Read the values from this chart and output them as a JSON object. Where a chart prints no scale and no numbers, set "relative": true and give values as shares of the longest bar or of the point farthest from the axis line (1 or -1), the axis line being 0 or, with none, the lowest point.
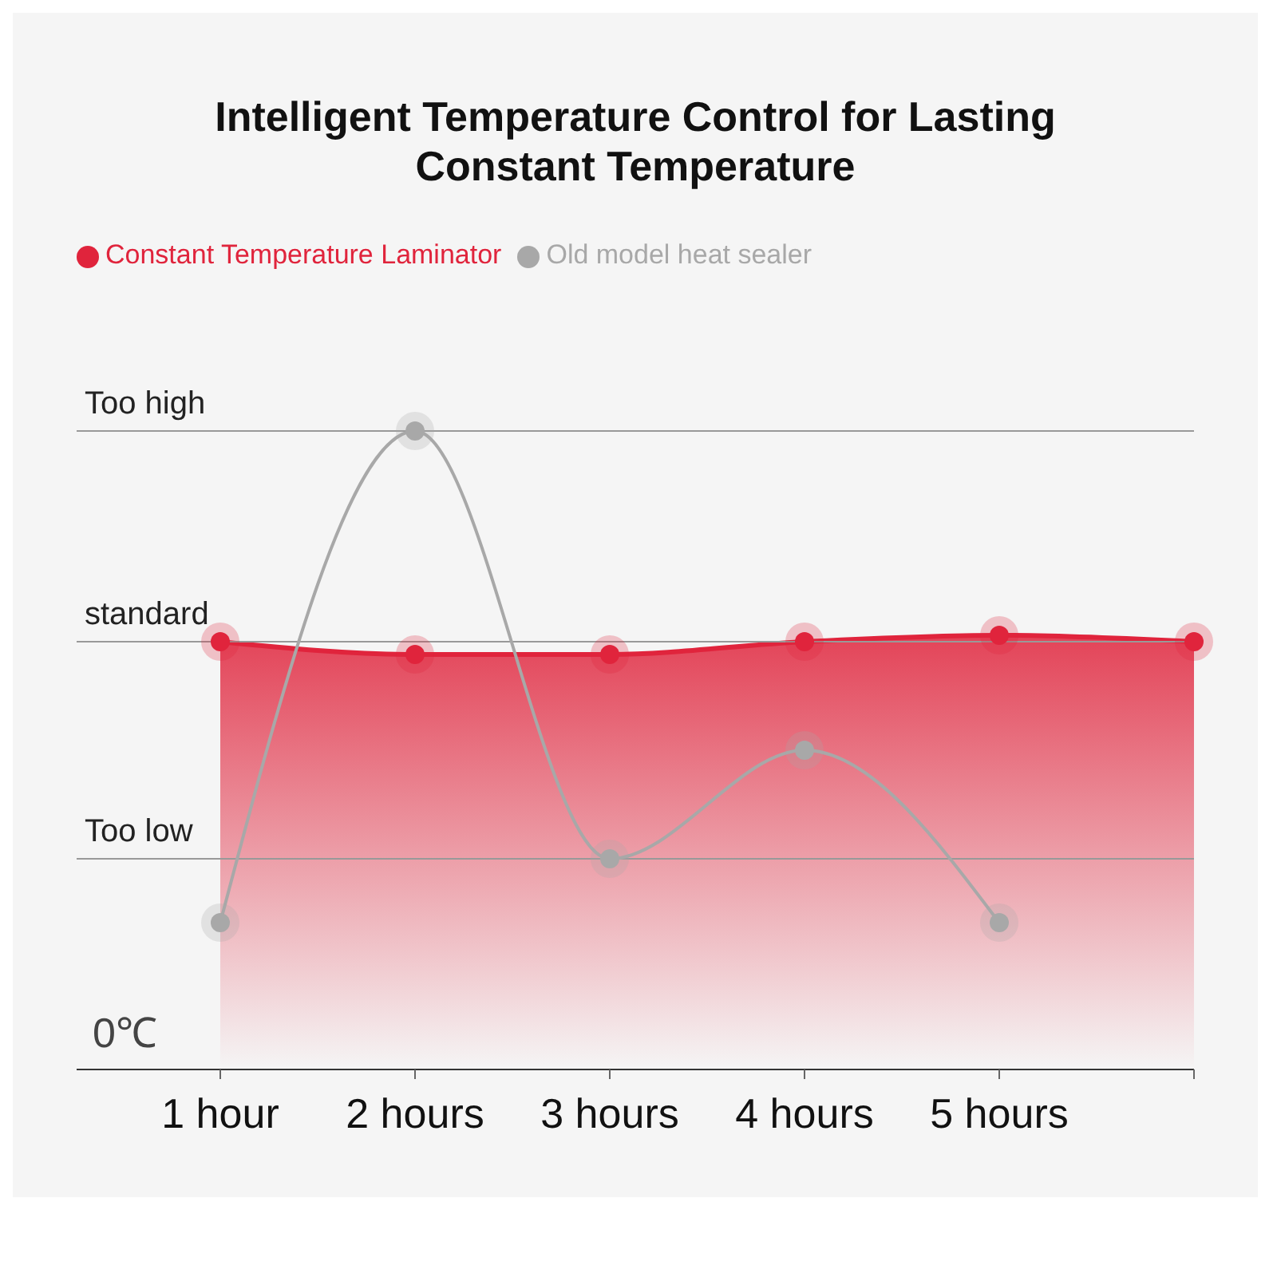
{
  "chart_data": {
    "type": "line",
    "title": "Intelligent Temperature Control for Lasting Constant Temperature",
    "categories": [
      "1 hour",
      "2 hours",
      "3 hours",
      "4 hours",
      "5 hours",
      null
    ],
    "relative": true,
    "series": [
      {
        "name": "Constant Temperature Laminator",
        "type": "area",
        "color": "#e0243c",
        "values": [
          0.67,
          0.65,
          0.65,
          0.67,
          0.68,
          0.67
        ]
      },
      {
        "name": "Old model heat sealer",
        "color": "#a8a8a8",
        "values": [
          0.23,
          1.0,
          0.33,
          0.5,
          0.23,
          null
        ]
      }
    ],
    "ref_lines": [
      {
        "axis": "y",
        "value": 1.0,
        "label": "Too high",
        "color": "#999999"
      },
      {
        "axis": "y",
        "value": 0.67,
        "label": "standard",
        "color": "#999999"
      },
      {
        "axis": "y",
        "value": 0.33,
        "label": "Too low",
        "color": "#999999"
      }
    ],
    "annotations": [
      "0℃"
    ],
    "legend": "top left",
    "marker": "circle"
  }
}
